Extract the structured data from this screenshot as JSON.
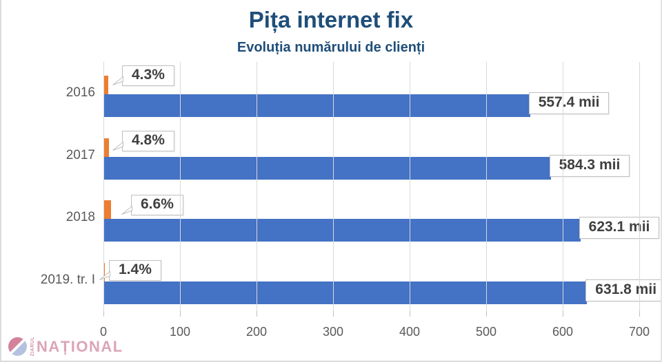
{
  "title": "Pița internet fix",
  "subtitle": "Evoluția numărului de clienți",
  "colors": {
    "title": "#1F4E79",
    "bar_blue": "#4472C4",
    "bar_orange": "#ED7D31",
    "grid": "#D9D9D9",
    "axis_text": "#595959",
    "label_text": "#404040",
    "callout_border": "#BFBFBF",
    "logo_pink": "#D38BA3"
  },
  "chart_data": {
    "type": "bar",
    "orientation": "horizontal",
    "title": "Pița internet fix",
    "subtitle": "Evoluția numărului de clienți",
    "categories": [
      "2016",
      "2017",
      "2018",
      "2019. tr. I"
    ],
    "series": [
      {
        "id": "clients",
        "unit": "mii",
        "values": [
          557.4,
          584.3,
          623.1,
          631.8
        ],
        "labels": [
          "557.4 mii",
          "584.3 mii",
          "623.1 mii",
          "631.8 mii"
        ],
        "color": "#4472C4"
      },
      {
        "id": "growth",
        "unit": "%",
        "values": [
          4.3,
          4.8,
          6.6,
          1.4
        ],
        "labels": [
          "4.3%",
          "4.8%",
          "6.6%",
          "1.4%"
        ],
        "color": "#ED7D31"
      }
    ],
    "xlim": [
      0,
      700
    ],
    "x_ticks": [
      0,
      100,
      200,
      300,
      400,
      500,
      600,
      700
    ],
    "grid": "vertical",
    "legend": "none"
  },
  "logo": {
    "small_text": "ZIARUL",
    "text": "NAȚIONAL"
  }
}
